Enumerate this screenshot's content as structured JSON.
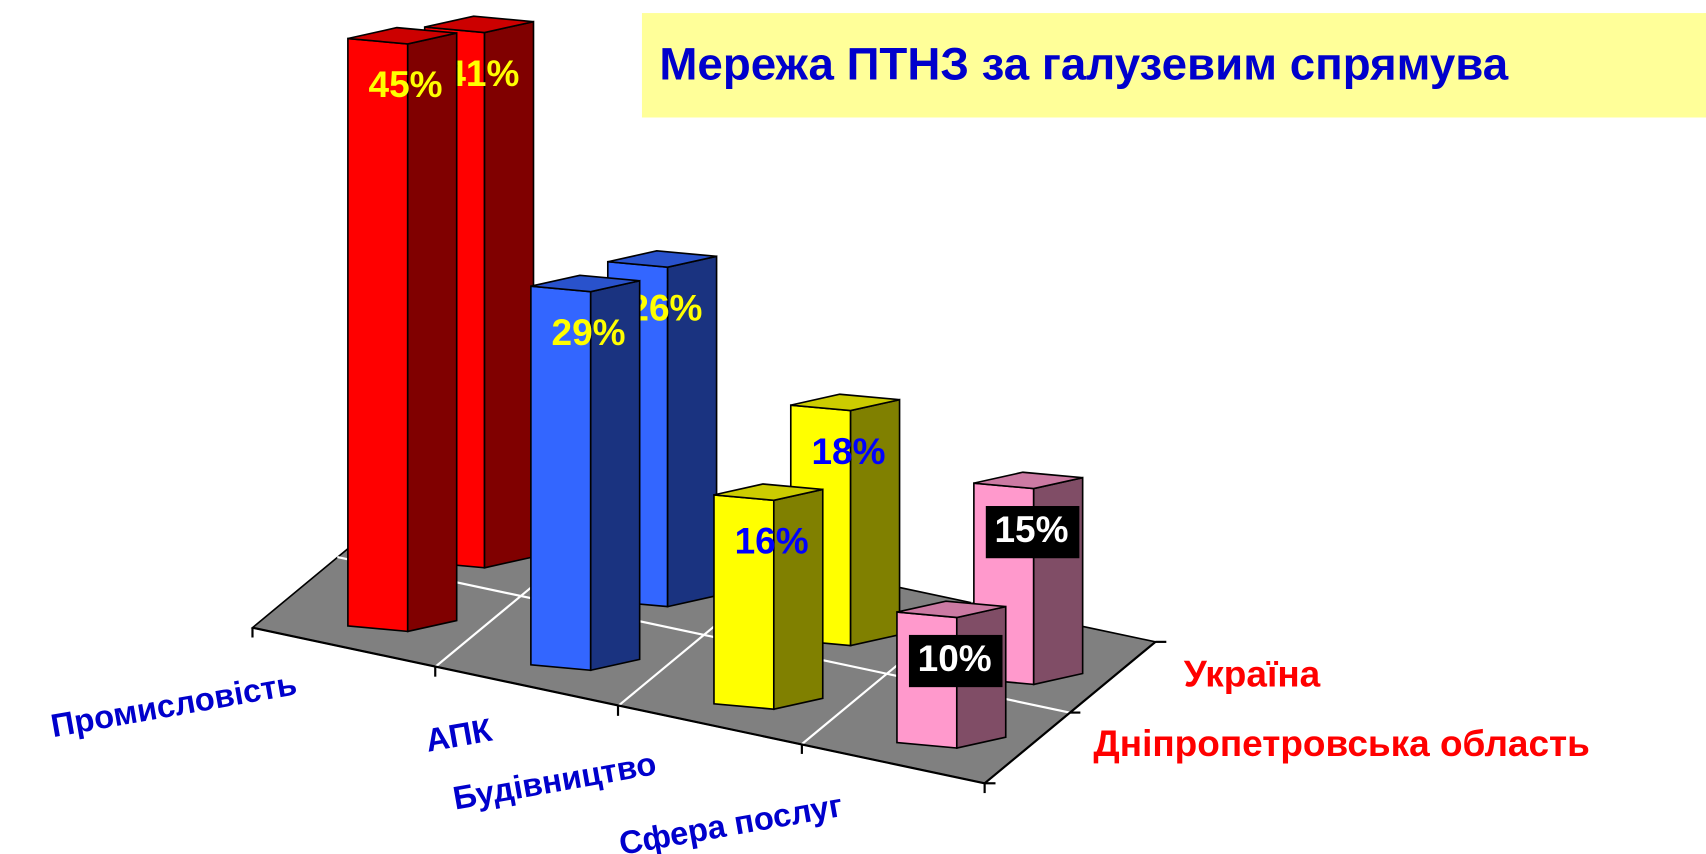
{
  "chart_data": {
    "type": "bar3d",
    "title": "Мережа ПТНЗ за галузевим спрямува",
    "categories": [
      "Промисловість",
      "АПК",
      "Будівництво",
      "Сфера послуг"
    ],
    "colors": [
      "#ff0000",
      "#3366ff",
      "#ffff00",
      "#ff99cc"
    ],
    "series": [
      {
        "name": "Україна",
        "values": [
          41,
          26,
          18,
          15
        ],
        "value_labels": [
          "41%",
          "26%",
          "18%",
          "15%"
        ]
      },
      {
        "name": "Дніпропетровська область",
        "values": [
          45,
          29,
          16,
          10
        ],
        "value_labels": [
          "45%",
          "29%",
          "16%",
          "10%"
        ]
      }
    ]
  }
}
